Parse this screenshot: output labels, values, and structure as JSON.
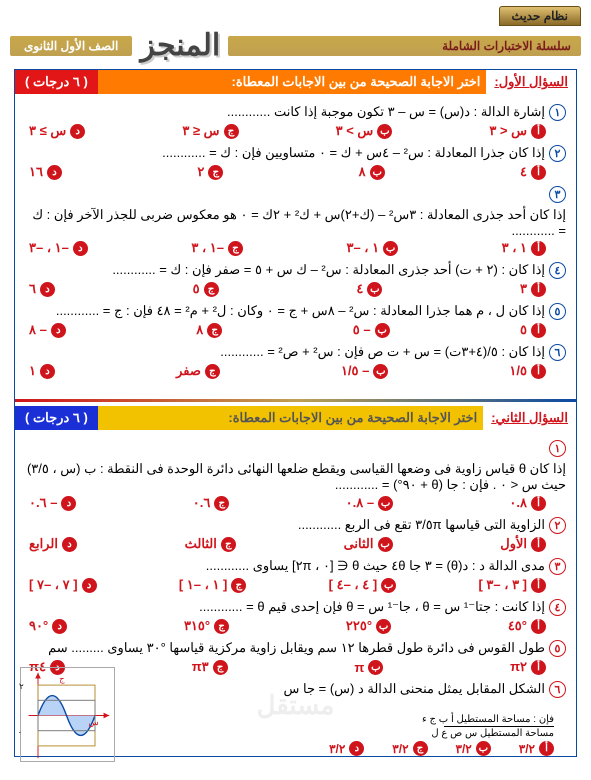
{
  "header": {
    "tag": "نظام حديث",
    "series": "سلسلة الاختبارات الشاملة",
    "logo": "المنجز",
    "grade": "الصف الأول الثانوى"
  },
  "sections": [
    {
      "colors": {
        "right": "#ffffff",
        "rightbg": "#ffffff00",
        "mid": "#ff7a00",
        "left": "#e21616",
        "qtext": "#d0141b"
      },
      "label": "السؤال الأول:",
      "instruction": "اختر الاجابة الصحيحة من بين الاجابات المعطاة:",
      "points": "( ٦ درجات )",
      "questions": [
        {
          "num": "١",
          "text": "إشارة الدالة : د(س) = س – ٣ تكون موجبة إذا كانت ............",
          "choices": [
            "س < ٣",
            "س > ٣",
            "س ≤ ٣",
            "س ≥ ٣"
          ]
        },
        {
          "num": "٢",
          "text": "إذا كان جذرا المعادلة : س² – ٤س + ك = ٠ متساويين    فإن : ك = ............",
          "choices": [
            "٤",
            "٨",
            "٢",
            "١٦"
          ]
        },
        {
          "num": "٣",
          "text": "إذا كان أحد جذرى المعادلة : ٣س² – (ك+٢)س + ك² + ٢ك = ٠ هو معكوس ضربى للجذر الآخر فإن : ك = ............",
          "choices": [
            "١ ، ٣",
            "١ ، –٣",
            "–١ ، ٣",
            "–١ ، –٣"
          ]
        },
        {
          "num": "٤",
          "text": "إذا كان : (٢ + ت) أحد جذرى المعادلة : س² – ك س + ٥ = صفر    فإن : ك = ............",
          "choices": [
            "٣",
            "٤",
            "٥",
            "٦"
          ]
        },
        {
          "num": "٥",
          "text": "إذا كان ل ، م هما جذرا المعادلة : س² – ٨س + ج = ٠ وكان : ل² + م² = ٤٨ فإن : ج = ............",
          "choices": [
            "٥",
            "– ٥",
            "٨",
            "– ٨"
          ]
        },
        {
          "num": "٦",
          "text": "إذا كان : ٥/(٤+٣ت) = س + ت ص   فإن : س² + ص² = ............",
          "choices": [
            "١/٥",
            "– ١/٥",
            "صفر",
            "١"
          ]
        }
      ]
    },
    {
      "colors": {
        "right": "#ffffff",
        "rightbg": "#ffffff00",
        "mid": "#f2c200",
        "left": "#1a2fd6",
        "qtext": "#d0141b"
      },
      "label": "السؤال الثاني:",
      "instruction": "اختر الاجابة الصحيحة من بين الاجابات المعطاة:",
      "points": "( ٦ درجات )",
      "questions": [
        {
          "num": "١",
          "text": "إذا كان θ قياس زاوية فى وضعها القياسى ويقطع ضلعها النهائى دائرة الوحدة فى النقطة : ب (س ، ٣/٥) حيث س < ٠ .   فإن : جا (θ + ٩٠°) = ............",
          "choices": [
            "٠.٨",
            "– ٠.٨",
            "٠.٦",
            "– ٠.٦"
          ]
        },
        {
          "num": "٢",
          "text": "الزاوية التى قياسها ٥π/٣ تقع فى الربع ............",
          "choices": [
            "الأول",
            "الثانى",
            "الثالث",
            "الرابع"
          ]
        },
        {
          "num": "٣",
          "text": "مدى الدالة د : د(θ) = ٣ جا ٤θ حيث θ ∈ [٠ ، ٢π] يساوى ............",
          "choices": [
            "[ ٣ ، –٣ ]",
            "[ ٤ ، –٤ ]",
            "[ ١ ، –١ ]",
            "[ ٧ ، –٧ ]"
          ]
        },
        {
          "num": "٤",
          "text": "إذا كانت : جتا⁻¹ س = θ ، جا⁻¹ س = θ  فإن إحدى قيم θ = ............",
          "choices": [
            "°٤٥",
            "°٢٢٥",
            "°٣١٥",
            "°٩٠"
          ]
        },
        {
          "num": "٥",
          "text": "طول القوس فى دائرة طول قطرها ١٢ سم ويقابل زاوية مركزية قياسها °٣٠ يساوى ......... سم",
          "choices": [
            "π٢",
            "π",
            "π٣",
            "π٤"
          ]
        },
        {
          "num": "٦",
          "text": "الشكل المقابل يمثل منحنى الدالة د (س) = جا س",
          "choices": []
        }
      ],
      "fracnote": {
        "top": "مساحة المستطيل أ ب ج ء",
        "bot": "مساحة المستطيل س ص ع ل"
      },
      "bottom": [
        "٣/٢",
        "٣/٢",
        "٣/٢",
        "٣/٢"
      ]
    }
  ],
  "watermark": "مستقل"
}
